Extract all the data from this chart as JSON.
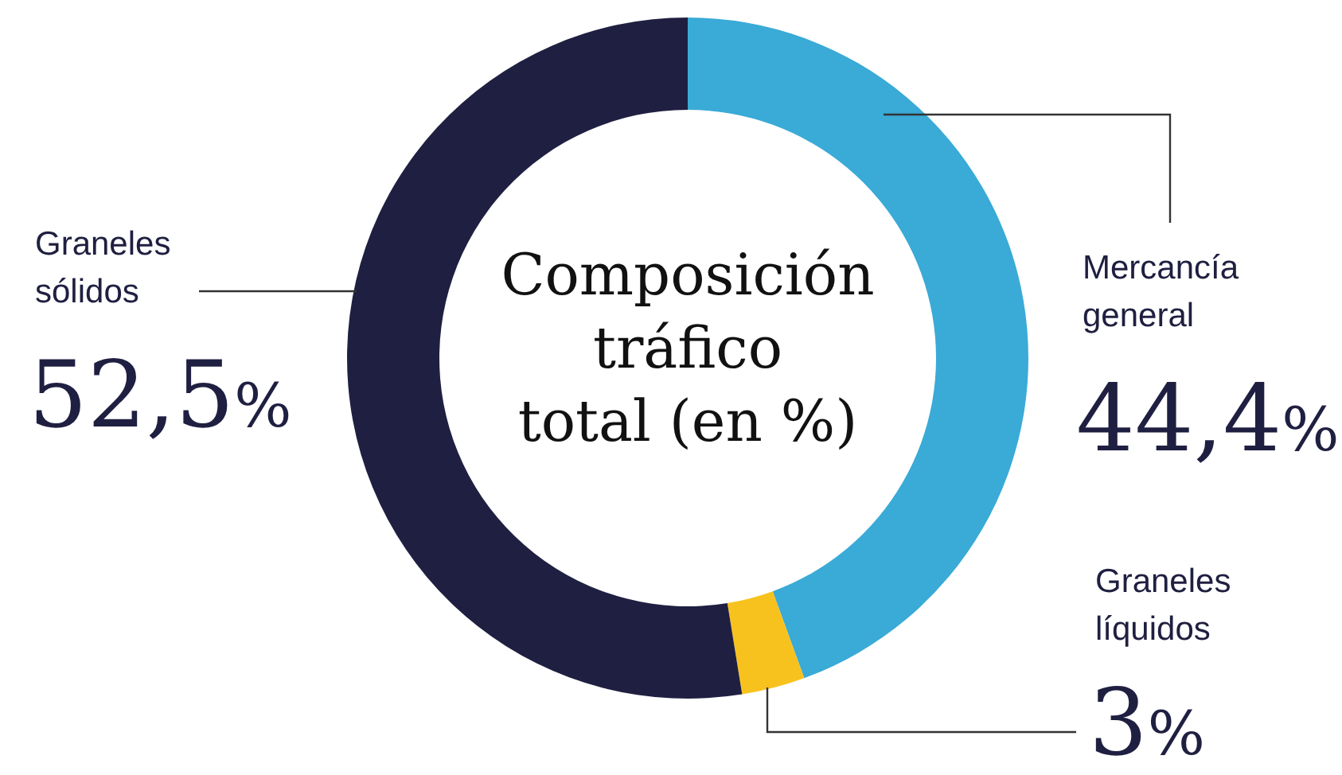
{
  "chart_data": {
    "type": "donut",
    "title": "Composición tráfico total (en %)",
    "categories": [
      "Mercancía general",
      "Graneles líquidos",
      "Graneles sólidos"
    ],
    "values": [
      44.4,
      3,
      52.5
    ],
    "colors": [
      "#3aaad7",
      "#f8c21e",
      "#1f1f41"
    ],
    "value_labels": [
      "44,4%",
      "3%",
      "52,5%"
    ],
    "legend": false
  }
}
